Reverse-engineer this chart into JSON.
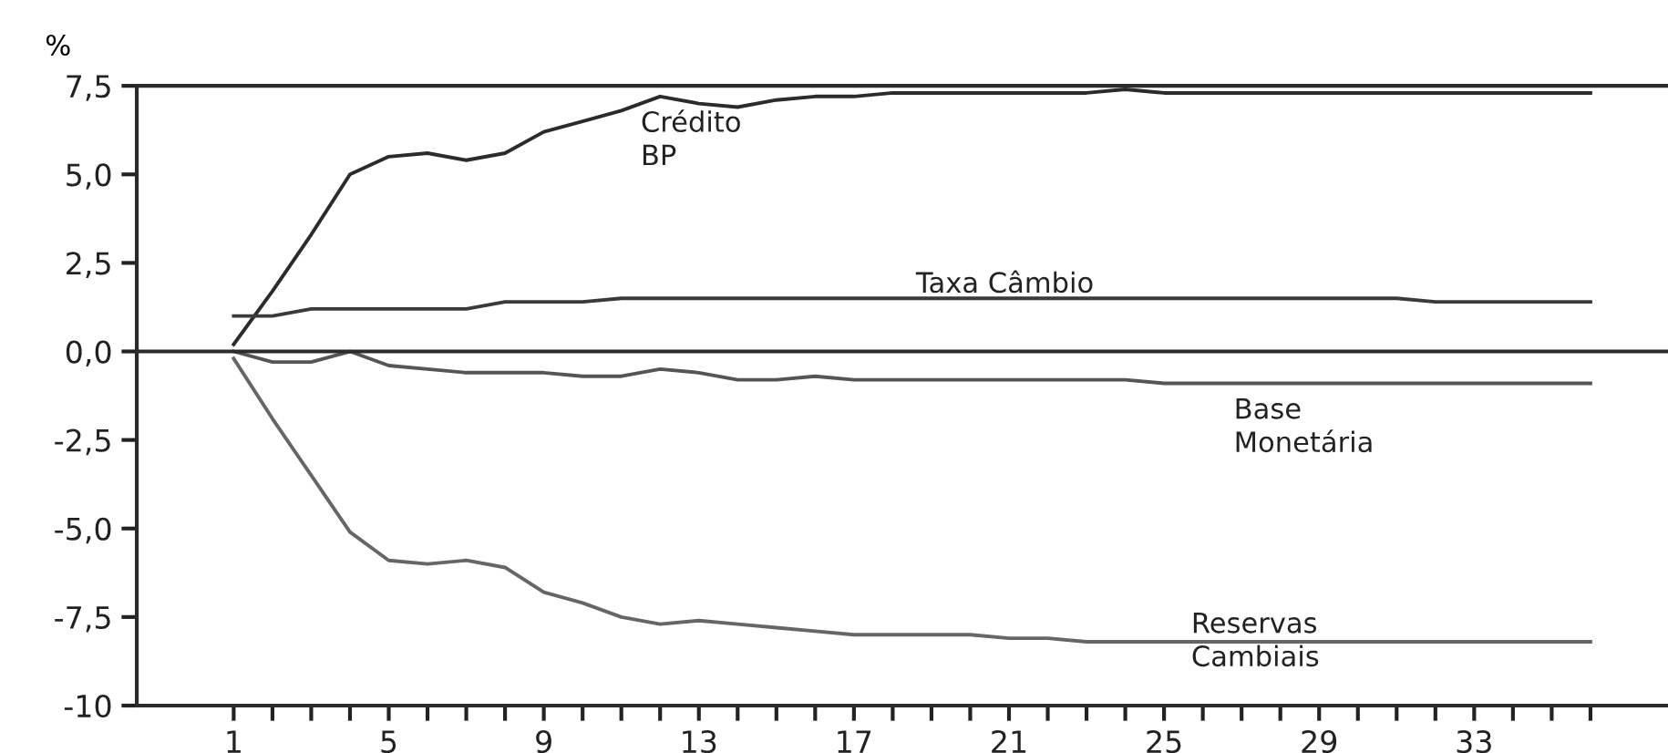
{
  "chart_data": {
    "type": "line",
    "ylabel": "%",
    "x": [
      1,
      2,
      3,
      4,
      5,
      6,
      7,
      8,
      9,
      10,
      11,
      12,
      13,
      14,
      15,
      16,
      17,
      18,
      19,
      20,
      21,
      22,
      23,
      24,
      25,
      26,
      27,
      28,
      29,
      30,
      31,
      32,
      33,
      34,
      35,
      36
    ],
    "series": [
      {
        "name": "Crédito BP",
        "color": "#2b2b2b",
        "values": [
          0.2,
          1.7,
          3.3,
          5.0,
          5.5,
          5.6,
          5.4,
          5.6,
          6.2,
          6.5,
          6.8,
          7.2,
          7.0,
          6.9,
          7.1,
          7.2,
          7.2,
          7.3,
          7.3,
          7.3,
          7.3,
          7.3,
          7.3,
          7.4,
          7.3,
          7.3,
          7.3,
          7.3,
          7.3,
          7.3,
          7.3,
          7.3,
          7.3,
          7.3,
          7.3,
          7.3
        ]
      },
      {
        "name": "Taxa Câmbio",
        "color": "#3a3a3a",
        "values": [
          1.0,
          1.0,
          1.2,
          1.2,
          1.2,
          1.2,
          1.2,
          1.4,
          1.4,
          1.4,
          1.5,
          1.5,
          1.5,
          1.5,
          1.5,
          1.5,
          1.5,
          1.5,
          1.5,
          1.5,
          1.5,
          1.5,
          1.5,
          1.5,
          1.5,
          1.5,
          1.5,
          1.5,
          1.5,
          1.5,
          1.5,
          1.4,
          1.4,
          1.4,
          1.4,
          1.4
        ]
      },
      {
        "name": "Base Monetária",
        "color": "#555555",
        "values": [
          0.0,
          -0.3,
          -0.3,
          0.0,
          -0.4,
          -0.5,
          -0.6,
          -0.6,
          -0.6,
          -0.7,
          -0.7,
          -0.5,
          -0.6,
          -0.8,
          -0.8,
          -0.7,
          -0.8,
          -0.8,
          -0.8,
          -0.8,
          -0.8,
          -0.8,
          -0.8,
          -0.8,
          -0.9,
          -0.9,
          -0.9,
          -0.9,
          -0.9,
          -0.9,
          -0.9,
          -0.9,
          -0.9,
          -0.9,
          -0.9,
          -0.9
        ]
      },
      {
        "name": "Reservas Cambiais",
        "color": "#666666",
        "values": [
          -0.2,
          -1.9,
          -3.5,
          -5.1,
          -5.9,
          -6.0,
          -5.9,
          -6.1,
          -6.8,
          -7.1,
          -7.5,
          -7.7,
          -7.6,
          -7.7,
          -7.8,
          -7.9,
          -8.0,
          -8.0,
          -8.0,
          -8.0,
          -8.1,
          -8.1,
          -8.2,
          -8.2,
          -8.2,
          -8.2,
          -8.2,
          -8.2,
          -8.2,
          -8.2,
          -8.2,
          -8.2,
          -8.2,
          -8.2,
          -8.2,
          -8.2
        ]
      }
    ],
    "xlim": [
      -1.5,
      38
    ],
    "xticks": [
      1,
      {
        "value": 2,
        "label": null
      },
      {
        "value": 3,
        "label": null
      },
      {
        "value": 4,
        "label": null
      },
      5,
      {
        "value": 6,
        "label": null
      },
      {
        "value": 7,
        "label": null
      },
      {
        "value": 8,
        "label": null
      },
      9,
      {
        "value": 10,
        "label": null
      },
      {
        "value": 11,
        "label": null
      },
      {
        "value": 12,
        "label": null
      },
      13,
      {
        "value": 14,
        "label": null
      },
      {
        "value": 15,
        "label": null
      },
      {
        "value": 16,
        "label": null
      },
      17,
      {
        "value": 18,
        "label": null
      },
      {
        "value": 19,
        "label": null
      },
      {
        "value": 20,
        "label": null
      },
      21,
      {
        "value": 22,
        "label": null
      },
      {
        "value": 23,
        "label": null
      },
      {
        "value": 24,
        "label": null
      },
      25,
      {
        "value": 26,
        "label": null
      },
      {
        "value": 27,
        "label": null
      },
      {
        "value": 28,
        "label": null
      },
      29,
      {
        "value": 30,
        "label": null
      },
      {
        "value": 31,
        "label": null
      },
      {
        "value": 32,
        "label": null
      },
      33,
      {
        "value": 34,
        "label": null
      },
      {
        "value": 35,
        "label": null
      },
      {
        "value": 36,
        "label": null
      }
    ],
    "ylim": [
      -10,
      7.5
    ],
    "yticks": [
      -10,
      {
        "value": -7.5,
        "label": "-7,5"
      },
      {
        "value": -5,
        "label": "-5,0"
      },
      {
        "value": -2.5,
        "label": "-2,5"
      },
      {
        "value": 0,
        "label": "0,0"
      },
      {
        "value": 2.5,
        "label": "2,5"
      },
      {
        "value": 5,
        "label": "5,0"
      },
      {
        "value": 7.5,
        "label": "7,5"
      }
    ],
    "ref_lines": [
      {
        "axis": "y",
        "value": 0,
        "color": "#2b2b2b"
      }
    ],
    "grid": false,
    "legend": false,
    "marker": "none",
    "line_style": "solid"
  }
}
